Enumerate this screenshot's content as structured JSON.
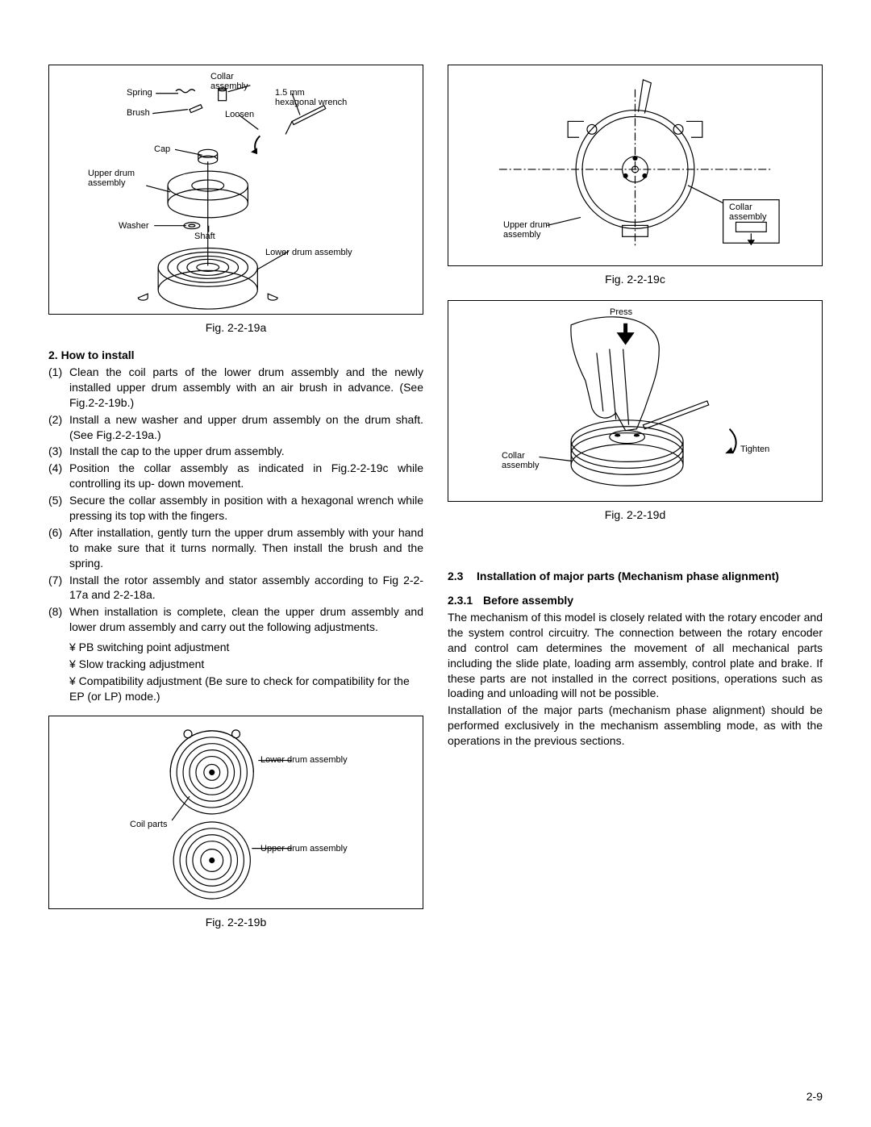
{
  "left": {
    "fig_a": {
      "caption": "Fig. 2-2-19a",
      "labels": {
        "spring": "Spring",
        "brush": "Brush",
        "cap": "Cap",
        "upper_drum": "Upper drum\nassembly",
        "washer": "Washer",
        "shaft": "Shaft",
        "collar": "Collar\nassembly",
        "wrench": "1.5 mm\nhexagonal wrench",
        "loosen": "Loosen",
        "lower_drum": "Lower drum assembly"
      }
    },
    "how_to_install_head": "2. How to install",
    "steps": [
      {
        "n": "(1)",
        "t": "Clean the coil parts of the lower drum assembly and the newly installed upper drum assembly with an air brush in advance. (See Fig.2-2-19b.)"
      },
      {
        "n": "(2)",
        "t": "Install a new washer and upper drum assembly on the drum shaft. (See Fig.2-2-19a.)"
      },
      {
        "n": "(3)",
        "t": "Install the cap to the upper drum assembly."
      },
      {
        "n": "(4)",
        "t": "Position the collar assembly as indicated in Fig.2-2-19c while controlling its up- down movement."
      },
      {
        "n": "(5)",
        "t": "Secure the collar assembly in position with a hexagonal wrench while pressing its top with the fingers."
      },
      {
        "n": "(6)",
        "t": "After installation, gently turn the upper drum assembly with your hand to make sure that it turns normally. Then install the brush and the spring."
      },
      {
        "n": "(7)",
        "t": "Install the rotor assembly and stator assembly according to Fig 2-2-17a and 2-2-18a."
      },
      {
        "n": "(8)",
        "t": "When installation is complete, clean the upper drum assembly and lower drum assembly and carry out the following adjustments."
      }
    ],
    "subs": [
      "¥ PB switching point adjustment",
      "¥ Slow tracking adjustment",
      "¥ Compatibility adjustment (Be sure to check for compatibility for the EP (or LP) mode.)"
    ],
    "fig_b": {
      "caption": "Fig. 2-2-19b",
      "labels": {
        "coil": "Coil parts",
        "lower": "Lower drum assembly",
        "upper": "Upper drum assembly"
      }
    }
  },
  "right": {
    "fig_c": {
      "caption": "Fig. 2-2-19c",
      "labels": {
        "upper_drum": "Upper drum\nassembly",
        "collar": "Collar\nassembly"
      }
    },
    "fig_d": {
      "caption": "Fig. 2-2-19d",
      "labels": {
        "press": "Press",
        "collar": "Collar\nassembly",
        "tighten": "Tighten"
      }
    },
    "section": {
      "num": "2.3",
      "title": "Installation of major parts (Mechanism phase alignment)"
    },
    "subsection": {
      "num": "2.3.1",
      "title": "Before assembly"
    },
    "para1": "The mechanism of this model is closely related with the rotary encoder and the system control circuitry. The connection between the rotary encoder and control cam determines the movement of all mechanical parts including the slide plate, loading arm assembly, control plate and brake. If these parts are not installed in the correct positions, operations such as loading and unloading will not be possible.",
    "para2": "Installation of the major parts (mechanism phase alignment) should be performed exclusively in the mechanism assembling mode, as with the operations in the previous sections."
  },
  "page_num": "2-9",
  "colors": {
    "stroke": "#000000",
    "bg": "#ffffff"
  }
}
